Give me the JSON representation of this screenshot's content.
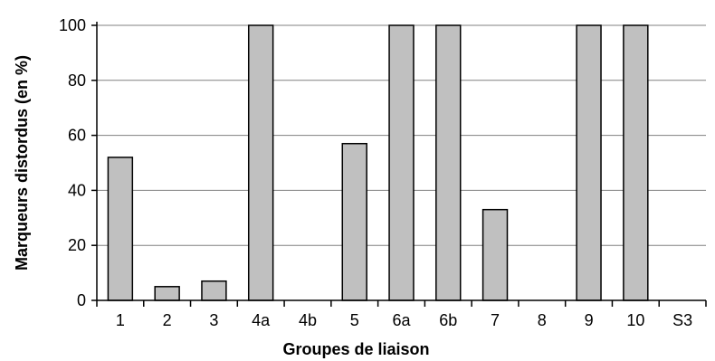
{
  "chart_data": {
    "type": "bar",
    "xlabel": "Groupes de liaison",
    "ylabel": "Marqueurs distordus (en %)",
    "categories": [
      "1",
      "2",
      "3",
      "4a",
      "4b",
      "5",
      "6a",
      "6b",
      "7",
      "8",
      "9",
      "10",
      "S3"
    ],
    "values": [
      52,
      5,
      7,
      100,
      0,
      57,
      100,
      100,
      33,
      0,
      100,
      100,
      0
    ],
    "ylim": [
      0,
      100
    ],
    "yticks": [
      0,
      20,
      40,
      60,
      80,
      100
    ],
    "grid": true,
    "bar_color": "#c0c0c0",
    "bar_edge_color": "#000000",
    "grid_color": "#808080"
  }
}
